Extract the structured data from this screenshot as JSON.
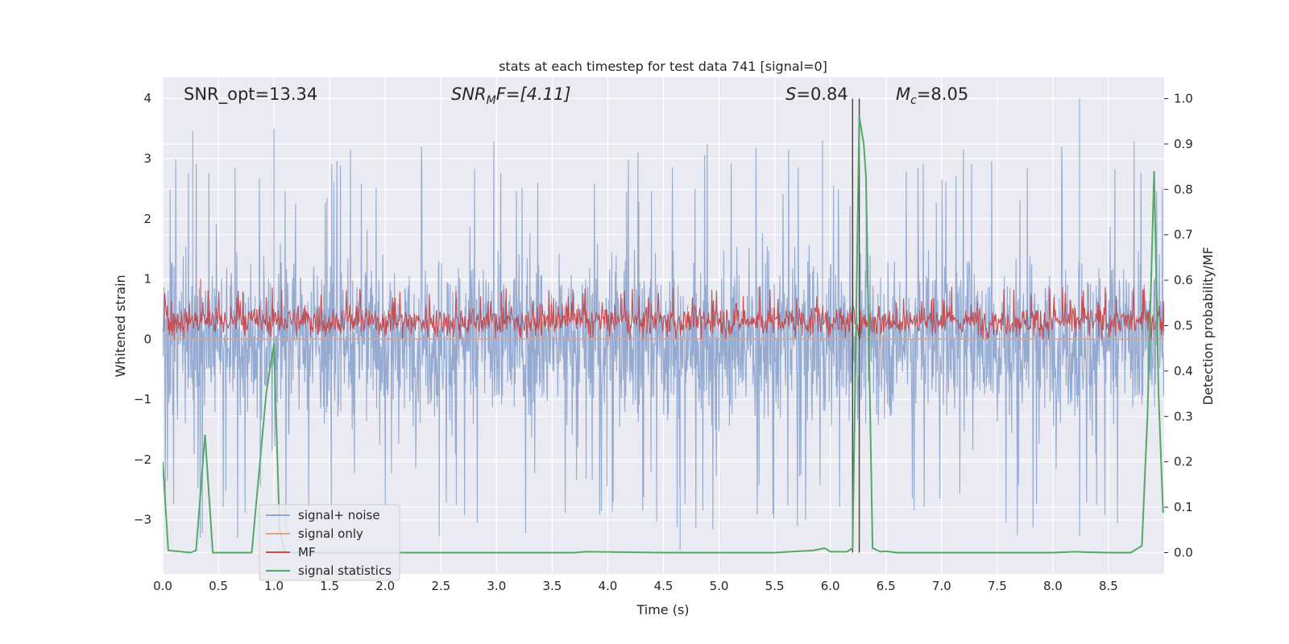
{
  "chart_data": {
    "type": "line",
    "title": "stats at each timestep for test data 741 [signal=0]",
    "xlabel": "Time (s)",
    "ylabel": "Whitened strain",
    "ylabel_right": "Detection probability/MF",
    "xlim": [
      0.0,
      9.0
    ],
    "ylim": [
      -3.9,
      4.35
    ],
    "ylim_right": [
      -0.047,
      1.047
    ],
    "xticks": [
      "0.0",
      "0.5",
      "1.0",
      "1.5",
      "2.0",
      "2.5",
      "3.0",
      "3.5",
      "4.0",
      "4.5",
      "5.0",
      "5.5",
      "6.0",
      "6.5",
      "7.0",
      "7.5",
      "8.0",
      "8.5"
    ],
    "yticks": [
      "4",
      "3",
      "2",
      "1",
      "0",
      "−1",
      "−2",
      "−3"
    ],
    "yticks_right": [
      "1.0",
      "0.9",
      "0.8",
      "0.7",
      "0.6",
      "0.5",
      "0.4",
      "0.3",
      "0.2",
      "0.1",
      "0.0"
    ],
    "grid": true,
    "legend_position": "lower-left",
    "annotations": {
      "snr_opt": "SNR_opt=13.34",
      "snr_mf_main": "SNR",
      "snr_mf_sub": "M",
      "snr_mf_rest": "F=[4.11]",
      "s_main": "S",
      "s_rest": "=0.84",
      "mc_main": "M",
      "mc_sub": "c",
      "mc_rest": "=8.05"
    },
    "vertical_lines_x": [
      6.2,
      6.26
    ],
    "series": [
      {
        "name": "signal+ noise",
        "color": "#8fa7cf",
        "axis": "left",
        "description": "whitened noise, amplitude roughly between -3.6 and 4.0",
        "peak_values": [
          [
            0.27,
            3.45
          ],
          [
            1.0,
            3.5
          ],
          [
            8.24,
            4.0
          ],
          [
            5.93,
            3.3
          ],
          [
            4.65,
            -3.5
          ]
        ]
      },
      {
        "name": "signal only",
        "color": "#e8a07d",
        "axis": "left",
        "x": [
          0.0,
          9.0
        ],
        "y": [
          0.0,
          0.0
        ]
      },
      {
        "name": "MF",
        "color": "#c44e52",
        "axis": "left",
        "description": "matched filter output, roughly between 0.0 and 1.0",
        "peak_values": [
          [
            0.34,
            1.0
          ]
        ]
      },
      {
        "name": "signal statistics",
        "color": "#55a868",
        "axis": "right",
        "x": [
          0.0,
          0.05,
          0.25,
          0.3,
          0.38,
          0.45,
          0.5,
          0.6,
          0.8,
          0.93,
          0.96,
          1.0,
          1.05,
          1.1,
          1.2,
          2.0,
          3.0,
          3.7,
          3.8,
          4.5,
          5.5,
          5.85,
          5.95,
          6.0,
          6.15,
          6.2,
          6.26,
          6.3,
          6.32,
          6.38,
          6.45,
          6.5,
          6.6,
          7.0,
          8.0,
          8.2,
          8.3,
          8.5,
          8.7,
          8.8,
          8.85,
          8.91,
          8.95,
          8.99,
          9.0
        ],
        "y": [
          0.2,
          0.005,
          0.0,
          0.005,
          0.26,
          0.0,
          0.0,
          0.0,
          0.0,
          0.35,
          0.4,
          0.46,
          0.05,
          0.0,
          0.0,
          0.0,
          0.0,
          0.0,
          0.002,
          0.0,
          0.0,
          0.005,
          0.01,
          0.002,
          0.002,
          0.01,
          0.96,
          0.9,
          0.83,
          0.01,
          0.002,
          0.003,
          0.0,
          0.0,
          0.0,
          0.002,
          0.001,
          0.0,
          0.0,
          0.015,
          0.3,
          0.84,
          0.35,
          0.09,
          0.09
        ]
      }
    ]
  },
  "legend": {
    "signal_noise": "signal+ noise",
    "signal_only": "signal only",
    "mf": "MF",
    "signal_statistics": "signal statistics"
  }
}
